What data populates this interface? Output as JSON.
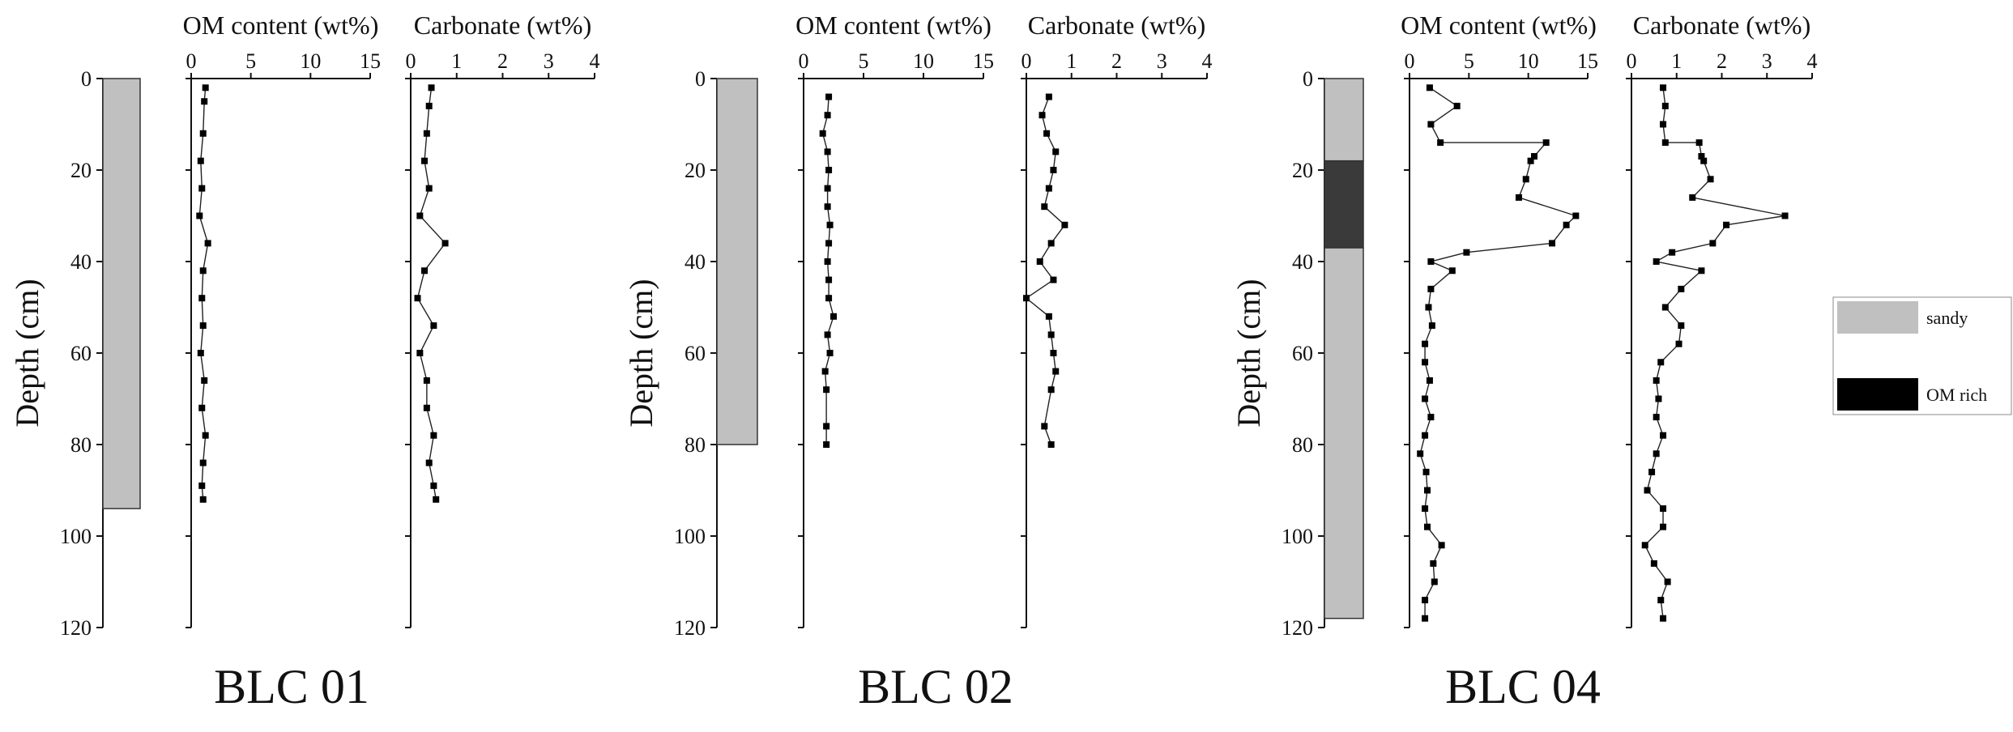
{
  "chart_data": {
    "type": "line",
    "depth_axis": {
      "label": "Depth (cm)",
      "range": [
        0,
        120
      ],
      "ticks": [
        0,
        20,
        40,
        60,
        80,
        100,
        120
      ]
    },
    "om_axis": {
      "label": "OM content (wt%)",
      "range": [
        0,
        15
      ],
      "ticks": [
        0,
        5,
        10,
        15
      ]
    },
    "carbonate_axis": {
      "label": "Carbonate (wt%)",
      "range": [
        0,
        4
      ],
      "ticks": [
        0,
        1,
        2,
        3,
        4
      ]
    },
    "legend": [
      {
        "label": "sandy",
        "color": "#c0c0c0"
      },
      {
        "label": "OM rich",
        "color": "#000000"
      }
    ],
    "lithology_colors": {
      "sandy": "#c0c0c0",
      "om_rich": "#3a3a3a"
    },
    "cores": [
      {
        "name": "BLC 01",
        "lithology": [
          {
            "type": "sandy",
            "top": 0,
            "bottom": 94
          }
        ],
        "om": {
          "depth": [
            2,
            5,
            12,
            18,
            24,
            30,
            36,
            42,
            48,
            54,
            60,
            66,
            72,
            78,
            84,
            89,
            92
          ],
          "value": [
            1.2,
            1.1,
            1.0,
            0.8,
            0.9,
            0.7,
            1.4,
            1.0,
            0.9,
            1.0,
            0.8,
            1.1,
            0.9,
            1.2,
            1.0,
            0.9,
            1.0
          ]
        },
        "carbonate": {
          "depth": [
            2,
            6,
            12,
            18,
            24,
            30,
            36,
            42,
            48,
            54,
            60,
            66,
            72,
            78,
            84,
            89,
            92
          ],
          "value": [
            0.45,
            0.4,
            0.35,
            0.3,
            0.4,
            0.2,
            0.75,
            0.3,
            0.15,
            0.5,
            0.2,
            0.35,
            0.35,
            0.5,
            0.4,
            0.5,
            0.55
          ]
        }
      },
      {
        "name": "BLC 02",
        "lithology": [
          {
            "type": "sandy",
            "top": 0,
            "bottom": 80
          }
        ],
        "om": {
          "depth": [
            4,
            8,
            12,
            16,
            20,
            24,
            28,
            32,
            36,
            40,
            44,
            48,
            52,
            56,
            60,
            64,
            68,
            76,
            80
          ],
          "value": [
            2.1,
            2.0,
            1.6,
            2.0,
            2.1,
            2.0,
            2.0,
            2.2,
            2.1,
            2.0,
            2.1,
            2.1,
            2.5,
            2.0,
            2.2,
            1.8,
            1.9,
            1.9,
            1.9
          ]
        },
        "carbonate": {
          "depth": [
            4,
            8,
            12,
            16,
            20,
            24,
            28,
            32,
            36,
            40,
            44,
            48,
            52,
            56,
            60,
            64,
            68,
            76,
            80
          ],
          "value": [
            0.5,
            0.35,
            0.45,
            0.65,
            0.6,
            0.5,
            0.4,
            0.85,
            0.55,
            0.3,
            0.6,
            0.0,
            0.5,
            0.55,
            0.6,
            0.65,
            0.55,
            0.4,
            0.55
          ]
        }
      },
      {
        "name": "BLC 04",
        "lithology": [
          {
            "type": "sandy",
            "top": 0,
            "bottom": 18
          },
          {
            "type": "om_rich",
            "top": 18,
            "bottom": 37
          },
          {
            "type": "sandy",
            "top": 37,
            "bottom": 118
          }
        ],
        "om": {
          "depth": [
            2,
            6,
            10,
            14,
            14,
            17,
            18,
            22,
            26,
            30,
            32,
            36,
            38,
            40,
            42,
            46,
            50,
            54,
            58,
            62,
            66,
            70,
            74,
            78,
            82,
            86,
            90,
            94,
            98,
            102,
            106,
            110,
            114,
            118
          ],
          "value": [
            1.7,
            4.0,
            1.8,
            2.6,
            11.5,
            10.5,
            10.2,
            9.8,
            9.2,
            14.0,
            13.2,
            12.0,
            4.8,
            1.8,
            3.6,
            1.8,
            1.6,
            1.9,
            1.3,
            1.3,
            1.7,
            1.3,
            1.8,
            1.3,
            0.9,
            1.4,
            1.5,
            1.3,
            1.5,
            2.7,
            2.0,
            2.1,
            1.3,
            1.3
          ]
        },
        "carbonate": {
          "depth": [
            2,
            6,
            10,
            14,
            14,
            17,
            18,
            22,
            26,
            30,
            32,
            36,
            38,
            40,
            42,
            46,
            50,
            54,
            58,
            62,
            66,
            70,
            74,
            78,
            82,
            86,
            90,
            94,
            98,
            102,
            106,
            110,
            114,
            118
          ],
          "value": [
            0.7,
            0.75,
            0.7,
            0.75,
            1.5,
            1.55,
            1.6,
            1.75,
            1.35,
            3.4,
            2.1,
            1.8,
            0.9,
            0.55,
            1.55,
            1.1,
            0.75,
            1.1,
            1.05,
            0.65,
            0.55,
            0.6,
            0.55,
            0.7,
            0.55,
            0.45,
            0.35,
            0.7,
            0.7,
            0.3,
            0.5,
            0.8,
            0.65,
            0.7
          ]
        }
      }
    ]
  }
}
